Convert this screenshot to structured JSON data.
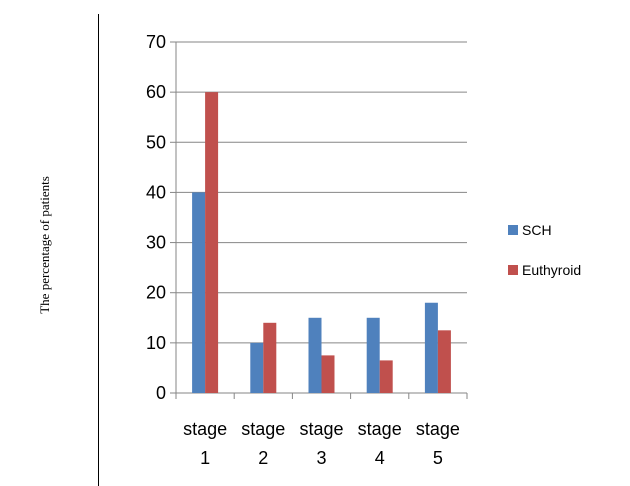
{
  "chart_data": {
    "type": "bar",
    "title": "",
    "xlabel": "",
    "ylabel": "The  percentage of patients",
    "categories": [
      [
        "stage",
        "1"
      ],
      [
        "stage",
        "2"
      ],
      [
        "stage",
        "3"
      ],
      [
        "stage",
        "4"
      ],
      [
        "stage",
        "5"
      ]
    ],
    "series": [
      {
        "name": "SCH",
        "color": "#4f81bd",
        "values": [
          40,
          10,
          15,
          15,
          18
        ]
      },
      {
        "name": "Euthyroid",
        "color": "#c0504d",
        "values": [
          60,
          14,
          7.5,
          6.5,
          12.5
        ]
      }
    ],
    "ylim": [
      0,
      70
    ],
    "yticks": [
      0,
      10,
      20,
      30,
      40,
      50,
      60,
      70
    ],
    "grid": true,
    "legend_position": "right"
  }
}
